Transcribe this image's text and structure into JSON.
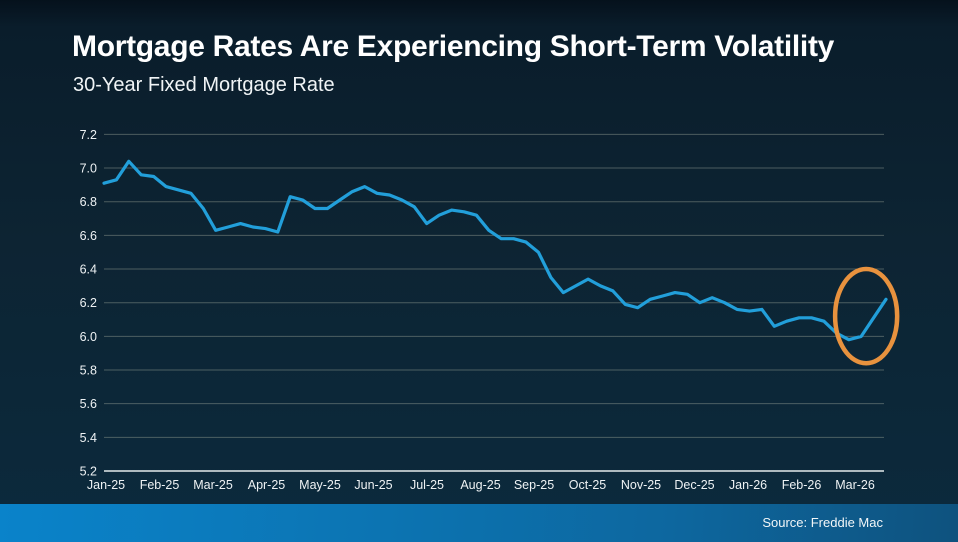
{
  "slide": {
    "title": "Mortgage Rates Are Experiencing Short-Term Volatility",
    "subtitle": "30-Year Fixed Mortgage Rate",
    "source": "Source: Freddie Mac"
  },
  "colors": {
    "background": "#0d2433",
    "line": "#229fda",
    "grid": "#8e978e",
    "axis": "#b7c2c6",
    "tick_text": "#eef2f4",
    "highlight": "#e8923e",
    "footer_left": "#0a83ca",
    "footer_right": "#0e527e"
  },
  "chart_data": {
    "type": "line",
    "title": "30-Year Fixed Mortgage Rate",
    "xlabel": "",
    "ylabel": "",
    "ylim": [
      5.2,
      7.2
    ],
    "y_ticks": [
      5.2,
      5.4,
      5.6,
      5.8,
      6.0,
      6.2,
      6.4,
      6.6,
      6.8,
      7.0,
      7.2
    ],
    "x_tick_labels": [
      "Jan-25",
      "Feb-25",
      "Mar-25",
      "Apr-25",
      "May-25",
      "Jun-25",
      "Jul-25",
      "Aug-25",
      "Sep-25",
      "Oct-25",
      "Nov-25",
      "Dec-25",
      "Jan-26",
      "Feb-26",
      "Mar-26"
    ],
    "grid": true,
    "legend": false,
    "frequency": "weekly",
    "series": [
      {
        "name": "30-Year Fixed Mortgage Rate",
        "values": [
          6.91,
          6.93,
          7.04,
          6.96,
          6.95,
          6.89,
          6.87,
          6.85,
          6.76,
          6.63,
          6.65,
          6.67,
          6.65,
          6.64,
          6.62,
          6.83,
          6.81,
          6.76,
          6.76,
          6.81,
          6.86,
          6.89,
          6.85,
          6.84,
          6.81,
          6.77,
          6.67,
          6.72,
          6.75,
          6.74,
          6.72,
          6.63,
          6.58,
          6.58,
          6.56,
          6.5,
          6.35,
          6.26,
          6.3,
          6.34,
          6.3,
          6.27,
          6.19,
          6.17,
          6.22,
          6.24,
          6.26,
          6.25,
          6.2,
          6.23,
          6.2,
          6.16,
          6.15,
          6.16,
          6.06,
          6.09,
          6.11,
          6.11,
          6.09,
          6.02,
          5.98,
          6.0,
          6.11,
          6.22
        ]
      }
    ],
    "annotation": {
      "shape": "ellipse",
      "meaning": "highlights recent short-term volatility: dip to 5.98 then rebound to 6.22",
      "center_week_index": 61.4,
      "center_value": 6.12,
      "radius_weeks": 2.5,
      "radius_value": 0.28,
      "color": "#e8923e"
    }
  }
}
